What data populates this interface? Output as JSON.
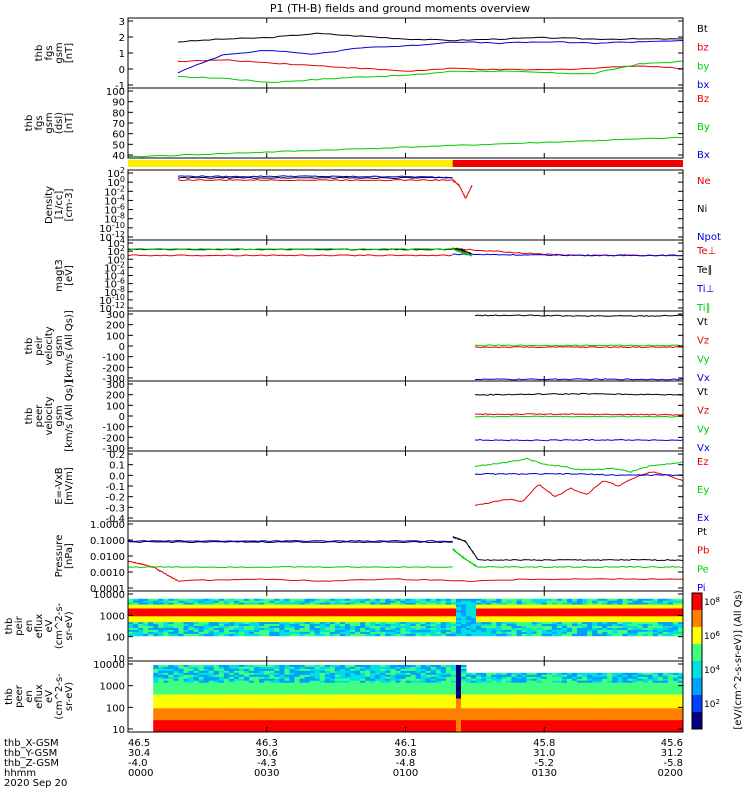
{
  "title": "P1 (TH-B) fields and ground moments overview",
  "colors": {
    "black": "#000000",
    "red": "#e60000",
    "green": "#00cc00",
    "blue": "#0000dd",
    "yellow": "#ffee00",
    "barRed": "#ee0000"
  },
  "time_axis": {
    "ticks": [
      "0000",
      "0030",
      "0100",
      "0130",
      "0200"
    ],
    "rows": [
      {
        "label": "thb_X-GSM",
        "values": [
          "46.5",
          "46.3",
          "46.1",
          "45.8",
          "45.6"
        ]
      },
      {
        "label": "thb_Y-GSM",
        "values": [
          "30.4",
          "30.6",
          "30.8",
          "31.0",
          "31.2"
        ]
      },
      {
        "label": "thb_Z-GSM",
        "values": [
          "-4.0",
          "-4.3",
          "-4.8",
          "-5.2",
          "-5.8"
        ]
      },
      {
        "label": "hhmm",
        "values": [
          "0000",
          "0030",
          "0100",
          "0130",
          "0200"
        ]
      }
    ],
    "date": "2020 Sep 20"
  },
  "mode_bar": {
    "segments": [
      {
        "from": 0,
        "to": 0.585,
        "color": "yellow"
      },
      {
        "from": 0.585,
        "to": 1,
        "color": "barRed"
      }
    ]
  },
  "chart_data": [
    {
      "type": "line",
      "ylabel": [
        "thb",
        "fgs",
        "gsm",
        "[nT]"
      ],
      "ylim": [
        -2,
        3
      ],
      "yticks": [
        "3",
        "2",
        "1",
        "0",
        "-1"
      ],
      "series": [
        {
          "name": "Bt",
          "color": "black",
          "segments": [
            [
              0.09,
              1.0,
              [
                1.3,
                1.5,
                1.6,
                1.9,
                1.7,
                1.5,
                1.4,
                1.5,
                1.6,
                1.5,
                1.5,
                1.5
              ]
            ]
          ]
        },
        {
          "name": "bz",
          "color": "red",
          "segments": [
            [
              0.09,
              1.0,
              [
                -0.1,
                0.0,
                -0.2,
                -0.4,
                -0.6,
                -0.8,
                -0.6,
                -0.7,
                -0.7,
                -0.6,
                -0.4,
                -0.6
              ]
            ]
          ]
        },
        {
          "name": "by",
          "color": "green",
          "segments": [
            [
              0.09,
              1.0,
              [
                -1.2,
                -1.3,
                -1.6,
                -1.4,
                -1.2,
                -1.1,
                -0.8,
                -0.8,
                -0.9,
                -1.0,
                -0.3,
                -0.1
              ]
            ]
          ]
        },
        {
          "name": "bx",
          "color": "blue",
          "segments": [
            [
              0.09,
              1.0,
              [
                -0.9,
                0.4,
                0.7,
                0.4,
                0.9,
                1.0,
                1.3,
                1.2,
                1.3,
                1.2,
                1.3,
                1.4
              ]
            ]
          ]
        }
      ]
    },
    {
      "type": "line",
      "ylabel": [
        "thb",
        "fgs",
        "gsm",
        "(dsl)",
        "[nT]"
      ],
      "ylim": [
        35,
        100
      ],
      "yticks": [
        "100",
        "90",
        "80",
        "70",
        "60",
        "50",
        "40"
      ],
      "series": [
        {
          "name": "Bz",
          "color": "red",
          "segments": []
        },
        {
          "name": "By",
          "color": "green",
          "segments": [
            [
              0.0,
              1.0,
              [
                36,
                38,
                40,
                42,
                44,
                46,
                48,
                50,
                52,
                54
              ]
            ]
          ]
        },
        {
          "name": "Bx",
          "color": "blue",
          "segments": []
        }
      ]
    },
    {
      "type": "line",
      "scale": "log",
      "ylabel": [
        "Density",
        "[1/cc]",
        "[cm-3]"
      ],
      "ylim": [
        -13,
        3
      ],
      "yticks": [
        "10^2",
        "10^0",
        "10^-2",
        "10^-4",
        "10^-6",
        "10^-8",
        "10^-10",
        "10^-12"
      ],
      "series": [
        {
          "name": "Ne",
          "color": "red",
          "segments": [
            [
              0.09,
              0.585,
              [
                0.7,
                0.7,
                0.7,
                0.7,
                0.7,
                0.7
              ]
            ],
            [
              0.585,
              0.62,
              [
                0.7,
                -0.5,
                -3.5,
                -0.5
              ]
            ]
          ]
        },
        {
          "name": "Ni",
          "color": "black",
          "segments": [
            [
              0.09,
              0.585,
              [
                1.2,
                1.2,
                1.2,
                1.2,
                1.2,
                1.2
              ]
            ]
          ]
        },
        {
          "name": "Npot",
          "color": "blue",
          "segments": [
            [
              0.09,
              0.585,
              [
                1.6,
                1.5,
                1.6,
                1.5,
                1.5,
                1.3
              ]
            ]
          ]
        }
      ]
    },
    {
      "type": "line",
      "scale": "log",
      "ylabel": [
        "magt3",
        "[eV]"
      ],
      "ylim": [
        -13,
        5
      ],
      "yticks": [
        "10^4",
        "10^2",
        "10^0",
        "10^-2",
        "10^-4",
        "10^-6",
        "10^-8",
        "10^-10",
        "10^-12"
      ],
      "series": [
        {
          "name": "Te⊥",
          "color": "red",
          "segments": [
            [
              0.0,
              0.585,
              [
                1.1,
                1.1,
                1.1,
                1.1
              ]
            ],
            [
              0.585,
              1.0,
              [
                2.8,
                1.9,
                1.1,
                1.1,
                1.1
              ]
            ]
          ]
        },
        {
          "name": "Te∥",
          "color": "black",
          "segments": [
            [
              0.0,
              0.585,
              [
                2.6,
                2.6,
                2.6,
                2.6
              ]
            ],
            [
              0.585,
              0.62,
              [
                2.9,
                2.4,
                1.4
              ]
            ]
          ]
        },
        {
          "name": "Ti⊥",
          "color": "blue",
          "segments": [
            [
              0.585,
              1.0,
              [
                1.4,
                1.2,
                1.1,
                1.1
              ]
            ]
          ]
        },
        {
          "name": "Ti∥",
          "color": "green",
          "segments": [
            [
              0.0,
              0.585,
              [
                2.7,
                2.7,
                2.7,
                2.7
              ]
            ],
            [
              0.585,
              0.62,
              [
                2.8,
                1.8,
                1.1
              ]
            ]
          ]
        }
      ]
    },
    {
      "type": "line",
      "ylabel": [
        "thb",
        "peir",
        "velocity",
        "gsm",
        "[km/s (All Qs)]"
      ],
      "ylim": [
        -300,
        330
      ],
      "yticks": [
        "300",
        "200",
        "100",
        "0",
        "-100",
        "-200",
        "-300"
      ],
      "series": [
        {
          "name": "Vt",
          "color": "black",
          "segments": [
            [
              0.625,
              1.0,
              [
                290,
                290,
                285,
                285,
                290
              ]
            ]
          ]
        },
        {
          "name": "Vz",
          "color": "red",
          "segments": [
            [
              0.625,
              1.0,
              [
                5,
                5,
                5,
                5,
                5
              ]
            ]
          ]
        },
        {
          "name": "Vy",
          "color": "green",
          "segments": [
            [
              0.625,
              1.0,
              [
                20,
                20,
                20,
                20,
                20
              ]
            ]
          ]
        },
        {
          "name": "Vx",
          "color": "blue",
          "segments": [
            [
              0.625,
              1.0,
              [
                -285,
                -285,
                -285,
                -285,
                -285
              ]
            ]
          ]
        }
      ]
    },
    {
      "type": "line",
      "ylabel": [
        "thb",
        "peer",
        "velocity",
        "gsm",
        "[km/s (All Qs)]"
      ],
      "ylim": [
        -300,
        330
      ],
      "yticks": [
        "300",
        "200",
        "100",
        "0",
        "-100",
        "-200",
        "-300"
      ],
      "series": [
        {
          "name": "Vt",
          "color": "black",
          "segments": [
            [
              0.625,
              1.0,
              [
                205,
                210,
                215,
                210,
                205
              ]
            ]
          ]
        },
        {
          "name": "Vz",
          "color": "red",
          "segments": [
            [
              0.625,
              1.0,
              [
                30,
                32,
                30,
                28,
                25
              ]
            ]
          ]
        },
        {
          "name": "Vy",
          "color": "green",
          "segments": [
            [
              0.625,
              1.0,
              [
                10,
                12,
                10,
                10,
                10
              ]
            ]
          ]
        },
        {
          "name": "Vx",
          "color": "blue",
          "segments": [
            [
              0.625,
              1.0,
              [
                -200,
                -205,
                -200,
                -200,
                -205
              ]
            ]
          ]
        }
      ]
    },
    {
      "type": "line",
      "ylabel": [
        "E=-VxB",
        "[mV/m]"
      ],
      "ylim": [
        -0.42,
        0.22
      ],
      "yticks": [
        "0.2",
        "0.1",
        "0.0",
        "-0.1",
        "-0.2",
        "-0.3",
        "-0.4"
      ],
      "series": [
        {
          "name": "Ez",
          "color": "red",
          "segments": [
            [
              0.625,
              1.0,
              [
                -0.28,
                -0.25,
                -0.22,
                -0.24,
                -0.08,
                -0.2,
                -0.12,
                -0.18,
                -0.05,
                -0.1,
                -0.02,
                0.03,
                0.0,
                -0.05
              ]
            ]
          ]
        },
        {
          "name": "Ey",
          "color": "green",
          "segments": [
            [
              0.625,
              1.0,
              [
                0.08,
                0.1,
                0.12,
                0.15,
                0.1,
                0.08,
                0.05,
                0.05,
                0.06,
                0.03,
                0.08,
                0.1,
                0.12
              ]
            ]
          ]
        },
        {
          "name": "Ex",
          "color": "blue",
          "segments": [
            [
              0.625,
              1.0,
              [
                0.01,
                0.01,
                0.01,
                0.01,
                0.0,
                0.0,
                0.0
              ]
            ]
          ]
        }
      ]
    },
    {
      "type": "line",
      "scale": "log",
      "ylabel": [
        "Pressure",
        "[nPa]"
      ],
      "ylim": [
        -3.5,
        0
      ],
      "yticks": [
        "1.0000",
        "0.1000",
        "0.0100",
        "0.0010",
        "0.0001"
      ],
      "series": [
        {
          "name": "Pt",
          "color": "black",
          "segments": [
            [
              0.0,
              0.585,
              [
                -1.05,
                -1.05,
                -1.05,
                -1.05,
                -1.05
              ]
            ],
            [
              0.585,
              0.63,
              [
                -0.8,
                -1.0,
                -1.9
              ]
            ],
            [
              0.63,
              1.0,
              [
                -1.95,
                -1.95,
                -1.95,
                -1.95
              ]
            ]
          ]
        },
        {
          "name": "Pb",
          "color": "red",
          "segments": [
            [
              0.0,
              0.09,
              [
                -2.0,
                -2.3,
                -3.0
              ]
            ],
            [
              0.09,
              1.0,
              [
                -3.0,
                -2.9,
                -3.0,
                -2.9,
                -3.0,
                -2.9,
                -2.9,
                -2.9
              ]
            ]
          ]
        },
        {
          "name": "Pe",
          "color": "green",
          "segments": [
            [
              0.0,
              0.585,
              [
                -2.3,
                -2.3,
                -2.3,
                -2.3
              ]
            ],
            [
              0.585,
              0.63,
              [
                -1.4,
                -1.9,
                -2.3
              ]
            ],
            [
              0.63,
              1.0,
              [
                -2.3,
                -2.3,
                -2.3,
                -2.3
              ]
            ]
          ]
        },
        {
          "name": "Pi",
          "color": "blue",
          "segments": [
            [
              0.0,
              0.585,
              [
                -1.0,
                -1.0,
                -1.0,
                -1.0
              ]
            ]
          ]
        }
      ]
    },
    {
      "type": "heatmap",
      "ylabel": [
        "thb",
        "peir",
        "en",
        "eflux",
        "eV",
        "(cm^2-s-",
        "sr-eV)"
      ],
      "ylim": [
        0.7,
        4.3
      ],
      "yticks": [
        "10000",
        "1000",
        "100",
        "10"
      ]
    },
    {
      "type": "heatmap",
      "ylabel": [
        "thb",
        "peer",
        "en",
        "eflux",
        "eV",
        "(cm^2-s-",
        "sr-eV)"
      ],
      "ylim": [
        0.7,
        4.3
      ],
      "yticks": [
        "10000",
        "1000",
        "100",
        "10"
      ]
    }
  ],
  "colorbar": {
    "label": "[eV/(cm^2-s-sr-eV)] (All Qs)",
    "ticks": [
      "10^8",
      "10^6",
      "10^4",
      "10^2"
    ]
  }
}
